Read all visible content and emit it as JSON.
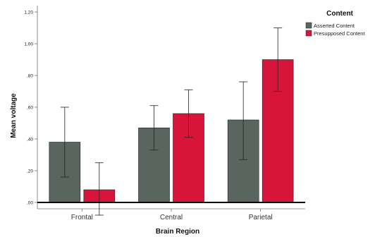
{
  "chart_data": {
    "type": "bar",
    "xlabel": "Brain Region",
    "ylabel": "Mean voltage",
    "ylim": [
      -0.04,
      1.24
    ],
    "y_ticks": [
      {
        "value": 0.0,
        "label": ",00"
      },
      {
        "value": 0.2,
        "label": ",20"
      },
      {
        "value": 0.4,
        "label": ",40"
      },
      {
        "value": 0.6,
        "label": ",60"
      },
      {
        "value": 0.8,
        "label": ",80"
      },
      {
        "value": 1.0,
        "label": "1,00"
      },
      {
        "value": 1.2,
        "label": "1,20"
      }
    ],
    "categories": [
      "Frontal",
      "Central",
      "Parietal"
    ],
    "series": [
      {
        "name": "Asserted Content",
        "color": "#5b6560",
        "values": [
          0.38,
          0.47,
          0.52
        ],
        "error_low": [
          0.16,
          0.33,
          0.27
        ],
        "error_high": [
          0.6,
          0.61,
          0.76
        ]
      },
      {
        "name": "Presupposed Content",
        "color": "#d9143a",
        "values": [
          0.08,
          0.56,
          0.9
        ],
        "error_low": [
          -0.08,
          0.41,
          0.7
        ],
        "error_high": [
          0.25,
          0.71,
          1.1
        ]
      }
    ],
    "legend": {
      "title": "Content",
      "position": "top-right"
    },
    "grid": false
  }
}
